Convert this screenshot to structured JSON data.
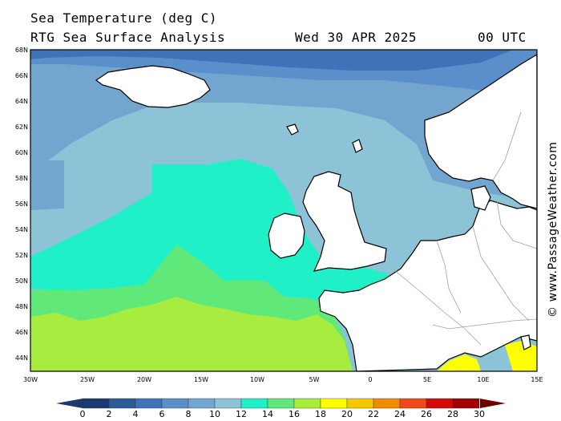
{
  "header": {
    "title": "Sea Temperature (deg C)",
    "subtitle": "RTG Sea Surface Analysis",
    "date": "Wed 30 APR 2025",
    "time": "00 UTC"
  },
  "credit": "© www.PassageWeather.com",
  "axes": {
    "lat_labels": [
      "68N",
      "66N",
      "64N",
      "62N",
      "60N",
      "58N",
      "56N",
      "54N",
      "52N",
      "50N",
      "48N",
      "46N",
      "44N"
    ],
    "lon_labels": [
      "30W",
      "25W",
      "20W",
      "15W",
      "10W",
      "5W",
      "0",
      "5E",
      "10E",
      "15E"
    ]
  },
  "colorbar": {
    "labels": [
      "0",
      "2",
      "4",
      "6",
      "8",
      "10",
      "12",
      "14",
      "16",
      "18",
      "20",
      "22",
      "24",
      "26",
      "28",
      "30"
    ],
    "colors": [
      "#1a3a70",
      "#2e5a96",
      "#3f72b8",
      "#5a8fcc",
      "#72a6cf",
      "#8cc3d6",
      "#20f0c8",
      "#60e878",
      "#a8ec40",
      "#ffff00",
      "#f5c800",
      "#f08c00",
      "#ee4a1c",
      "#d40a0a",
      "#a00000",
      "#700000"
    ],
    "left_arrow_color": "#1a3a70",
    "right_arrow_color": "#700000"
  },
  "palette": {
    "sea_8_10": "#8cc3d6",
    "sea_6_8": "#72a6cf",
    "sea_4_6": "#5a8fcc",
    "sea_2_4": "#3f72b8",
    "sea_12": "#20f0c8",
    "sea_14": "#60e878",
    "sea_16": "#a8ec40",
    "sea_18": "#ffff00",
    "land": "#ffffff",
    "coast": "#000000",
    "border": "#a0a0a0"
  }
}
